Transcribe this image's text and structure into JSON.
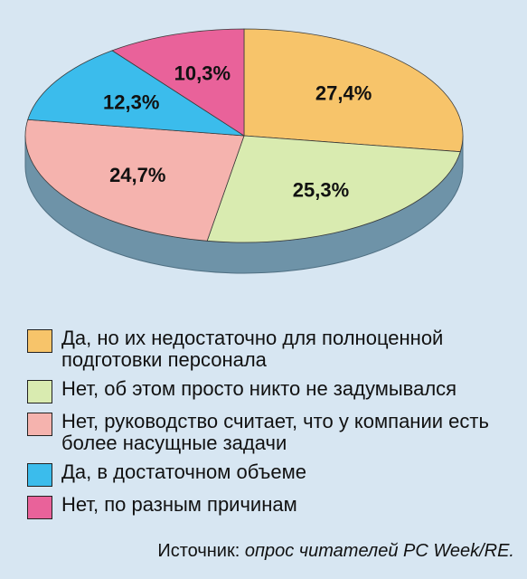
{
  "chart_data": {
    "type": "pie",
    "categories": [
      "Да, но их недостаточно для полноценной подготовки персонала",
      "Нет, об этом просто никто не задумывался",
      "Нет, руководство считает, что у компании есть более насущные задачи",
      "Да, в достаточном объеме",
      "Нет, по разным причинам"
    ],
    "values": [
      27.4,
      25.3,
      24.7,
      12.3,
      10.3
    ],
    "value_labels": [
      "27,4%",
      "25,3%",
      "24,7%",
      "12,3%",
      "10,3%"
    ],
    "colors": [
      "#f7c46a",
      "#d9ebb0",
      "#f5b3ae",
      "#3bbcec",
      "#e9629a"
    ],
    "side_color": "#6e93a8",
    "legend_placement": "bottom"
  },
  "legend": {
    "items": [
      {
        "label": "Да, но их недостаточно для полноценной подготовки персонала",
        "color": "#f7c46a"
      },
      {
        "label": "Нет, об этом просто никто не задумывался",
        "color": "#d9ebb0"
      },
      {
        "label": "Нет, руководство считает, что у компании есть более насущные задачи",
        "color": "#f5b3ae"
      },
      {
        "label": "Да, в достаточном объеме",
        "color": "#3bbcec"
      },
      {
        "label": "Нет, по разным причинам",
        "color": "#e9629a"
      }
    ]
  },
  "source": {
    "prefix": "Источник: ",
    "text": "опрос читателей PC Week/RE."
  }
}
